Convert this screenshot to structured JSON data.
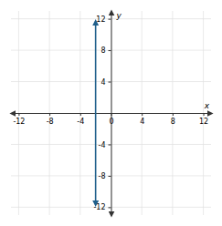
{
  "chart_data": {
    "type": "line",
    "xlabel": "x",
    "ylabel": "y",
    "x": [
      -2,
      -2
    ],
    "series": [
      {
        "color": "#1f5f8b",
        "marker": "arrow",
        "values": [
          -11.7,
          11.7
        ]
      }
    ],
    "xlim": [
      -13,
      13
    ],
    "ylim": [
      -13,
      13
    ],
    "xticks": [
      -12,
      -8,
      -4,
      0,
      4,
      8,
      12
    ],
    "yticks": [
      -12,
      -8,
      -4,
      4,
      8,
      12
    ],
    "grid": true
  }
}
